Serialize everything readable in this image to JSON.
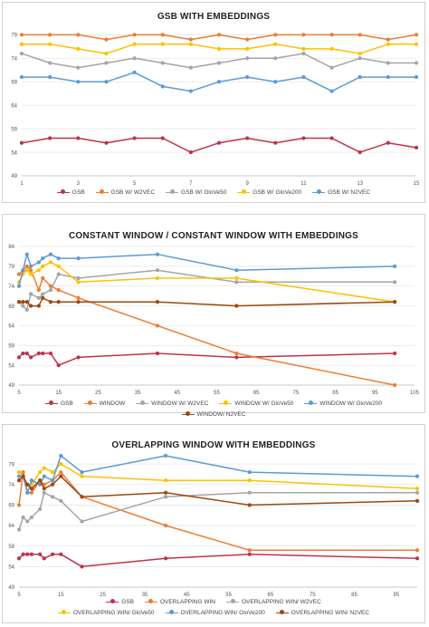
{
  "chart_data": [
    {
      "type": "line",
      "title": "GSB WITH EMBEDDINGS",
      "xlim": [
        1,
        15
      ],
      "xticks": [
        1,
        3,
        5,
        7,
        9,
        11,
        13,
        15
      ],
      "ylim": [
        49,
        81
      ],
      "yticks": [
        49,
        54,
        59,
        64,
        69,
        74,
        79
      ],
      "x": [
        1,
        2,
        3,
        4,
        5,
        6,
        7,
        8,
        9,
        10,
        11,
        12,
        13,
        14,
        15
      ],
      "legend_rows": 1,
      "series": [
        {
          "name": "GSB",
          "color": "#c0324a",
          "values": [
            56,
            57,
            57,
            56,
            57,
            57,
            54,
            56,
            57,
            56,
            57,
            57,
            54,
            56,
            55
          ]
        },
        {
          "name": "GSB W/ W2VEC",
          "color": "#ed7d31",
          "values": [
            79,
            79,
            79,
            78,
            79,
            79,
            78,
            79,
            78,
            79,
            79,
            79,
            79,
            78,
            79
          ]
        },
        {
          "name": "GSB W/ GloVe50",
          "color": "#a5a5a5",
          "values": [
            75,
            73,
            72,
            73,
            74,
            73,
            72,
            73,
            74,
            74,
            75,
            72,
            74,
            73,
            73
          ]
        },
        {
          "name": "GSB W/ GloVe200",
          "color": "#ffc000",
          "values": [
            77,
            77,
            76,
            75,
            77,
            77,
            77,
            76,
            76,
            77,
            76,
            76,
            75,
            77,
            77
          ]
        },
        {
          "name": "GSB W/ N2VEC",
          "color": "#5b9bd5",
          "values": [
            70,
            70,
            69,
            69,
            71,
            68,
            67,
            69,
            70,
            69,
            70,
            67,
            70,
            70,
            70
          ]
        }
      ]
    },
    {
      "type": "line",
      "title": "CONSTANT WINDOW / CONSTANT WINDOW WITH  EMBEDDINGS",
      "xlim": [
        5,
        105
      ],
      "xticks": [
        5,
        15,
        25,
        35,
        45,
        55,
        65,
        75,
        85,
        95,
        105
      ],
      "ylim": [
        49,
        84
      ],
      "yticks": [
        49,
        54,
        59,
        64,
        69,
        74,
        79,
        84
      ],
      "x": [
        5,
        6,
        7,
        8,
        10,
        11,
        13,
        15,
        20,
        40,
        60,
        100
      ],
      "legend_rows": 1,
      "series": [
        {
          "name": "GSB",
          "color": "#c0324a",
          "values": [
            56,
            57,
            57,
            56,
            57,
            57,
            57,
            54,
            56,
            57,
            56,
            57
          ]
        },
        {
          "name": "WINDOW",
          "color": "#ed7d31",
          "values": [
            77,
            78,
            79,
            78,
            73,
            76,
            74,
            73,
            71,
            64,
            57,
            49
          ]
        },
        {
          "name": "WINDOW W/ W2VEC",
          "color": "#a5a5a5",
          "values": [
            70,
            69,
            68,
            72,
            71,
            72,
            73,
            77,
            76,
            78,
            75,
            75
          ]
        },
        {
          "name": "WINDOW W/ GloVe50",
          "color": "#ffc000",
          "values": [
            75,
            77,
            78,
            77,
            78,
            79,
            80,
            79,
            75,
            76,
            76,
            70
          ]
        },
        {
          "name": "WINDOW W/ GloVe200",
          "color": "#5b9bd5",
          "values": [
            74,
            78,
            82,
            79,
            80,
            81,
            82,
            81,
            81,
            82,
            78,
            79
          ]
        },
        {
          "name": "WINDOW/ N2VEC",
          "color": "#9e480e",
          "values": [
            70,
            70,
            70,
            69,
            69,
            71,
            70,
            70,
            70,
            70,
            69,
            70
          ]
        }
      ]
    },
    {
      "type": "line",
      "title": "OVERLAPPING WINDOW WITH EMBEDDINGS",
      "xlim": [
        5,
        100
      ],
      "xticks": [
        5,
        15,
        25,
        35,
        45,
        55,
        65,
        75,
        85,
        95
      ],
      "ylim": [
        49,
        81
      ],
      "yticks": [
        49,
        54,
        59,
        64,
        69,
        74,
        79
      ],
      "x": [
        5,
        6,
        7,
        8,
        10,
        11,
        13,
        15,
        20,
        40,
        60,
        100
      ],
      "legend_rows": 2,
      "series": [
        {
          "name": "GSB",
          "color": "#c0324a",
          "values": [
            56,
            57,
            57,
            57,
            57,
            56,
            57,
            57,
            54,
            56,
            57,
            56
          ]
        },
        {
          "name": "OVERLAPPING WIN",
          "color": "#ed7d31",
          "values": [
            69,
            77,
            72,
            72,
            75,
            74,
            75,
            77,
            71,
            64,
            58,
            58
          ]
        },
        {
          "name": "OVERLAPPING WIN/ W2VEC",
          "color": "#a5a5a5",
          "values": [
            63,
            66,
            65,
            66,
            68,
            72,
            71,
            70,
            65,
            71,
            72,
            72
          ]
        },
        {
          "name": "OVERLAPPING WIN/ GloVe50",
          "color": "#ffc000",
          "values": [
            77,
            76,
            74,
            74,
            77,
            78,
            77,
            79,
            76,
            75,
            75,
            73
          ]
        },
        {
          "name": "OVERLAPPING WIN/ GloVe200",
          "color": "#5b9bd5",
          "values": [
            76,
            76,
            72,
            75,
            74,
            76,
            75,
            81,
            77,
            81,
            77,
            76
          ]
        },
        {
          "name": "OVERLAPPING WIN/ N2VEC",
          "color": "#9e480e",
          "values": [
            75,
            76,
            74,
            73,
            75,
            73,
            74,
            76,
            71,
            72,
            69,
            70
          ]
        }
      ]
    }
  ]
}
